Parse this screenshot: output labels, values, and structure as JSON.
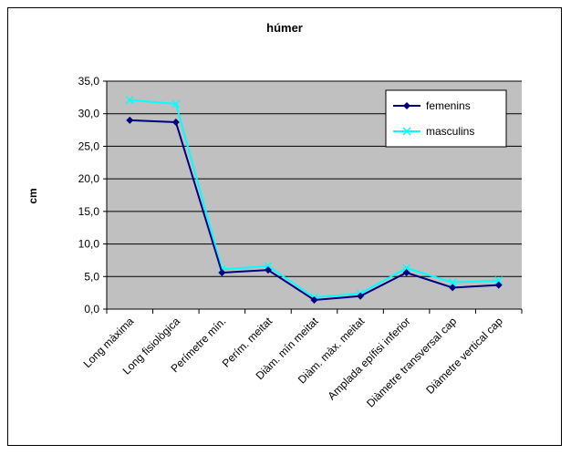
{
  "chart_data": {
    "type": "line",
    "title": "húmer",
    "xlabel": "",
    "ylabel": "cm",
    "ylim": [
      0,
      35
    ],
    "yticks": [
      "0,0",
      "5,0",
      "10,0",
      "15,0",
      "20,0",
      "25,0",
      "30,0",
      "35,0"
    ],
    "grid": true,
    "legend_position": "top-right",
    "plot_background": "#c0c0c0",
    "categories": [
      "Long màxima",
      "Long fisiològica",
      "Perímetre mín.",
      "Perím. meitat",
      "Diàm. mín meitat",
      "Diàm. màx. meitat",
      "Amplada epífisi inferior",
      "Diàmetre transversal cap",
      "Diàmetre vertical cap"
    ],
    "series": [
      {
        "name": "femenins",
        "color": "#000080",
        "marker": "diamond",
        "values": [
          29.0,
          28.7,
          5.6,
          6.0,
          1.4,
          2.0,
          5.6,
          3.3,
          3.7
        ]
      },
      {
        "name": "masculins",
        "color": "#00ffff",
        "marker": "x",
        "values": [
          32.1,
          31.5,
          6.1,
          6.6,
          1.8,
          2.4,
          6.3,
          4.1,
          4.4
        ]
      }
    ]
  }
}
